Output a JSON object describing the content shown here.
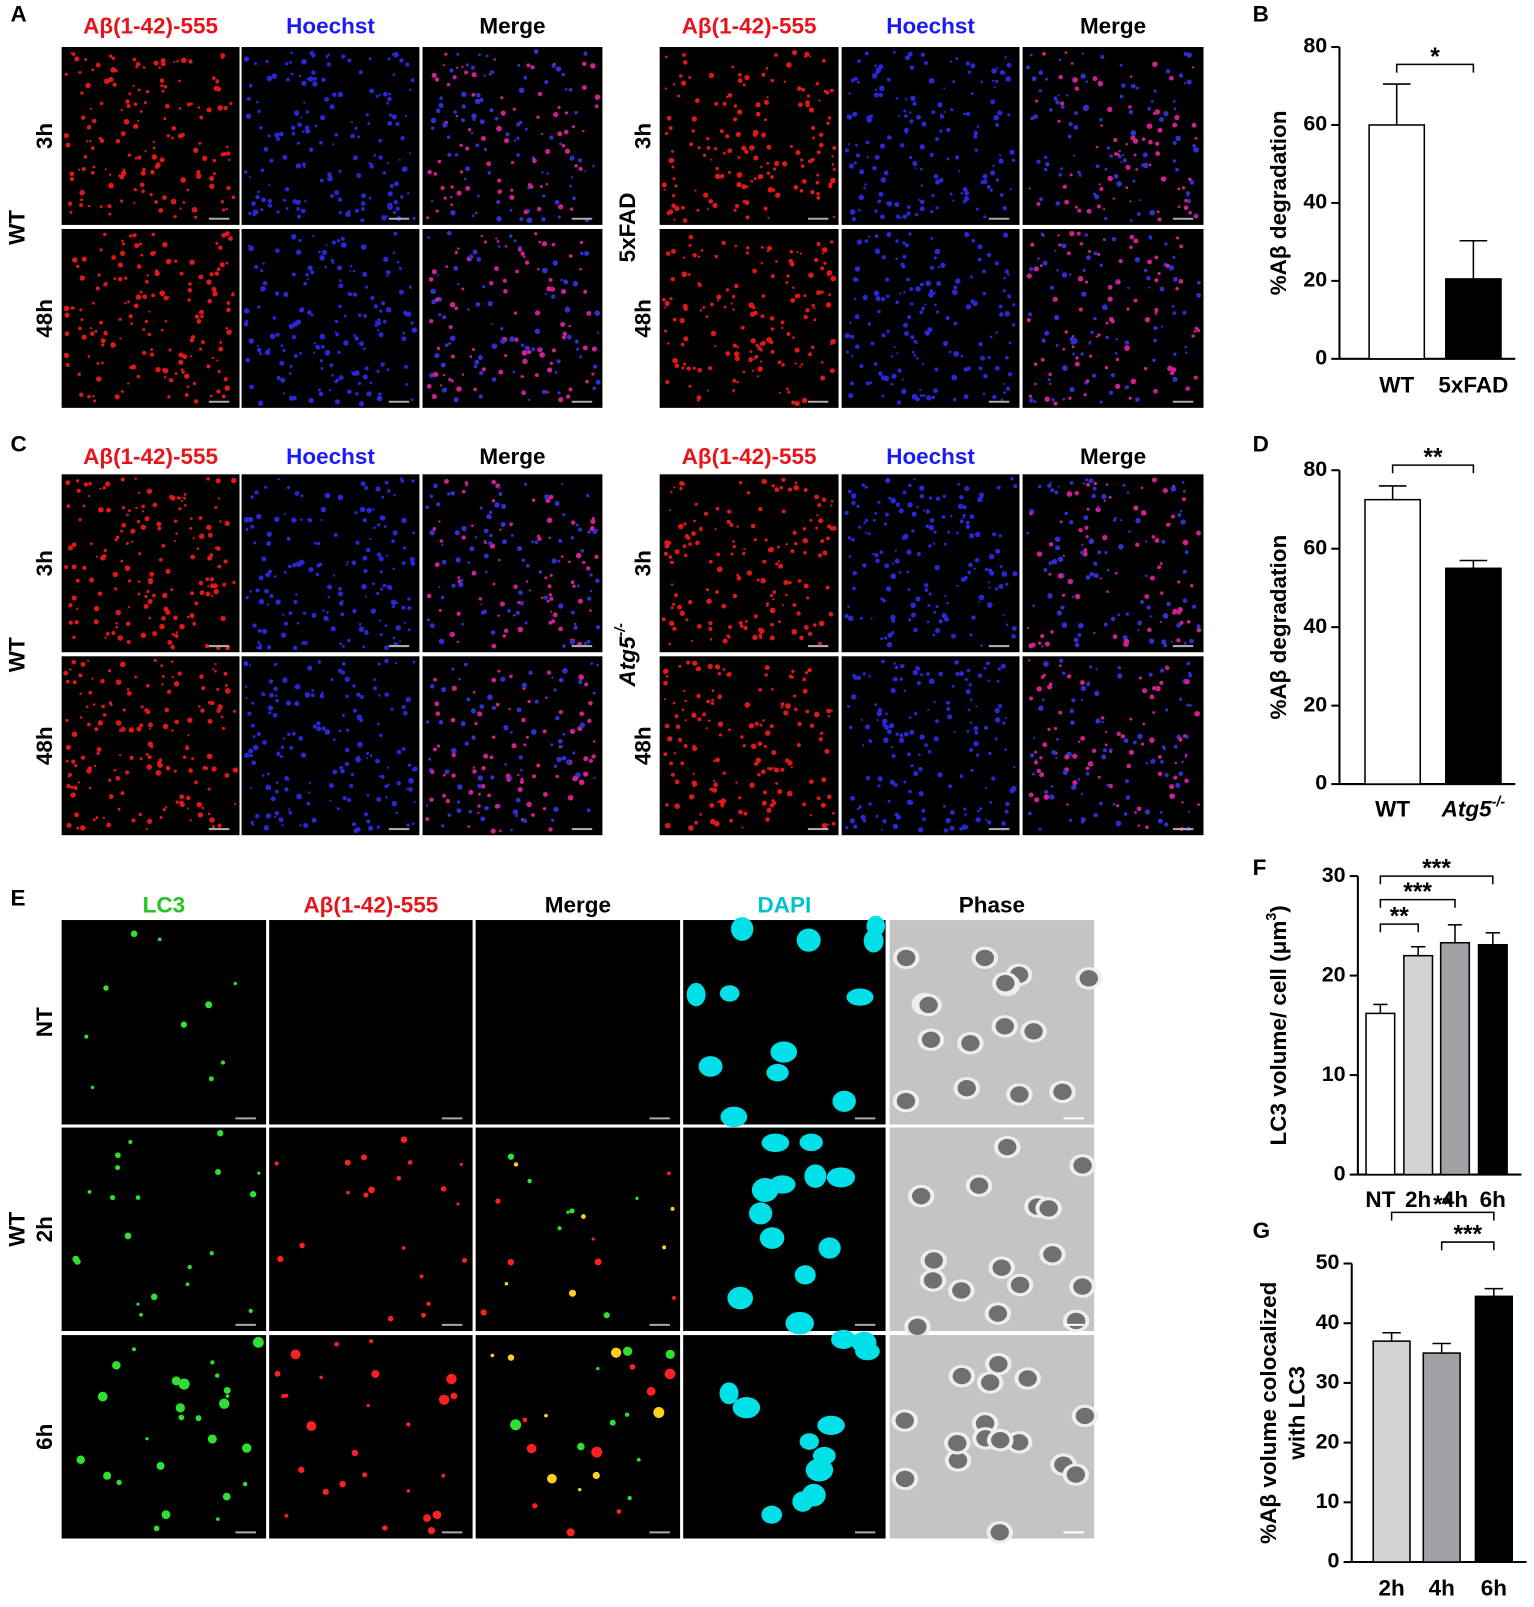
{
  "panels": {
    "A": {
      "label": "A",
      "groups": [
        {
          "genotype": "WT",
          "genotype_sup": null,
          "genotype_italic": false,
          "columns": [
            "Aβ(1-42)-555",
            "Hoechst",
            "Merge"
          ],
          "column_colors": [
            "#e8141c",
            "#1a1aff",
            "#000000"
          ],
          "rows": [
            "3h",
            "48h"
          ]
        },
        {
          "genotype": "5xFAD",
          "genotype_sup": null,
          "genotype_italic": false,
          "columns": [
            "Aβ(1-42)-555",
            "Hoechst",
            "Merge"
          ],
          "column_colors": [
            "#e8141c",
            "#1a1aff",
            "#000000"
          ],
          "rows": [
            "3h",
            "48h"
          ]
        }
      ]
    },
    "C": {
      "label": "C",
      "groups": [
        {
          "genotype": "WT",
          "genotype_sup": null,
          "genotype_italic": false,
          "columns": [
            "Aβ(1-42)-555",
            "Hoechst",
            "Merge"
          ],
          "column_colors": [
            "#e8141c",
            "#1a1aff",
            "#000000"
          ],
          "rows": [
            "3h",
            "48h"
          ]
        },
        {
          "genotype": "Atg5",
          "genotype_sup": "-/-",
          "genotype_italic": true,
          "columns": [
            "Aβ(1-42)-555",
            "Hoechst",
            "Merge"
          ],
          "column_colors": [
            "#e8141c",
            "#1a1aff",
            "#000000"
          ],
          "rows": [
            "3h",
            "48h"
          ]
        }
      ]
    },
    "E": {
      "label": "E",
      "groups": [
        {
          "genotype": "WT",
          "genotype_sup": null,
          "genotype_italic": false,
          "columns": [
            "LC3",
            "Aβ(1-42)-555",
            "Merge",
            "DAPI",
            "Phase"
          ],
          "column_colors": [
            "#22c422",
            "#e8141c",
            "#000000",
            "#00c4cc",
            "#000000"
          ],
          "rows": [
            "NT",
            "2h",
            "6h"
          ]
        }
      ]
    }
  },
  "chart_data": [
    {
      "type": "bar",
      "panel": "B",
      "ylabel": [
        [
          {
            "text": "%Aβ degradation",
            "sup": false
          }
        ]
      ],
      "categories": [
        "WT",
        "5xFAD"
      ],
      "category_superscripts": [
        null,
        null
      ],
      "category_italic": [
        false,
        false
      ],
      "values": [
        60,
        20.5
      ],
      "errors": [
        10.5,
        9.8
      ],
      "colors": [
        "#ffffff",
        "#000000"
      ],
      "ylim": [
        0,
        80
      ],
      "yticks": [
        0,
        20,
        40,
        60,
        80
      ],
      "significance": [
        {
          "from": 0,
          "to": 1,
          "label": "*"
        }
      ]
    },
    {
      "type": "bar",
      "panel": "D",
      "ylabel": [
        [
          {
            "text": "%Aβ degradation",
            "sup": false
          }
        ]
      ],
      "categories": [
        "WT",
        "Atg5"
      ],
      "category_superscripts": [
        null,
        "-/-"
      ],
      "category_italic": [
        false,
        true
      ],
      "values": [
        72.5,
        55
      ],
      "errors": [
        3.5,
        2
      ],
      "colors": [
        "#ffffff",
        "#000000"
      ],
      "ylim": [
        0,
        80
      ],
      "yticks": [
        0,
        20,
        40,
        60,
        80
      ],
      "significance": [
        {
          "from": 0,
          "to": 1,
          "label": "**"
        }
      ]
    },
    {
      "type": "bar",
      "panel": "F",
      "ylabel": [
        [
          {
            "text": "LC3 volume/ cell (μm",
            "sup": false
          },
          {
            "text": "3",
            "sup": true
          },
          {
            "text": ")",
            "sup": false
          }
        ]
      ],
      "categories": [
        "NT",
        "2h",
        "4h",
        "6h"
      ],
      "category_superscripts": [
        null,
        null,
        null,
        null
      ],
      "category_italic": [
        false,
        false,
        false,
        false
      ],
      "values": [
        16.2,
        22,
        23.3,
        23.1
      ],
      "errors": [
        0.9,
        0.9,
        1.8,
        1.2
      ],
      "colors": [
        "#ffffff",
        "#d3d3d3",
        "#a0a0a5",
        "#000000"
      ],
      "ylim": [
        0,
        30
      ],
      "yticks": [
        0,
        10,
        20,
        30
      ],
      "significance": [
        {
          "from": 0,
          "to": 1,
          "label": "**"
        },
        {
          "from": 0,
          "to": 2,
          "label": "***"
        },
        {
          "from": 0,
          "to": 3,
          "label": "***"
        }
      ]
    },
    {
      "type": "bar",
      "panel": "G",
      "ylabel": [
        [
          {
            "text": "%Aβ volume colocalized",
            "sup": false
          }
        ],
        [
          {
            "text": "with LC3",
            "sup": false
          }
        ]
      ],
      "categories": [
        "2h",
        "4h",
        "6h"
      ],
      "category_superscripts": [
        null,
        null,
        null
      ],
      "category_italic": [
        false,
        false,
        false
      ],
      "values": [
        37,
        35,
        44.5
      ],
      "errors": [
        1.4,
        1.6,
        1.3
      ],
      "colors": [
        "#d3d3d3",
        "#a0a0a5",
        "#000000"
      ],
      "ylim": [
        0,
        50
      ],
      "yticks": [
        0,
        10,
        20,
        30,
        40,
        50
      ],
      "significance": [
        {
          "from": 0,
          "to": 2,
          "label": "**"
        },
        {
          "from": 1,
          "to": 2,
          "label": "***"
        }
      ]
    }
  ]
}
